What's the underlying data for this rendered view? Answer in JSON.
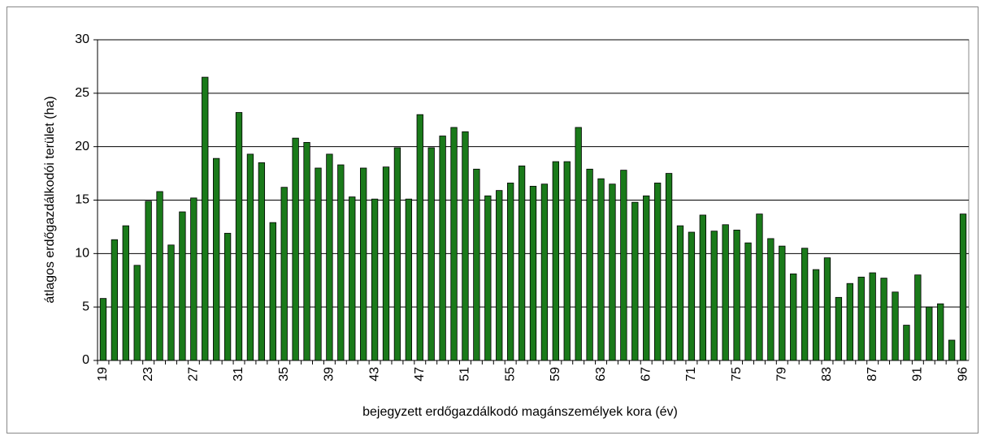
{
  "chart_data": {
    "type": "bar",
    "x_label": "bejegyzett erdőgazdálkodó magánszemélyek kora (év)",
    "y_label": "átlagos erdőgazdálkodói terület (ha)",
    "categories": [
      "19",
      null,
      null,
      null,
      "23",
      null,
      null,
      null,
      "27",
      null,
      null,
      null,
      "31",
      null,
      null,
      null,
      "35",
      null,
      null,
      null,
      "39",
      null,
      null,
      null,
      "43",
      null,
      null,
      null,
      "47",
      null,
      null,
      null,
      "51",
      null,
      null,
      null,
      "55",
      null,
      null,
      null,
      "59",
      null,
      null,
      null,
      "63",
      null,
      null,
      null,
      "67",
      null,
      null,
      null,
      "71",
      null,
      null,
      null,
      "75",
      null,
      null,
      null,
      "79",
      null,
      null,
      null,
      "83",
      null,
      null,
      null,
      "87",
      null,
      null,
      null,
      "91",
      null,
      null,
      null,
      "96"
    ],
    "values": [
      5.8,
      11.3,
      12.6,
      8.9,
      14.9,
      15.8,
      10.8,
      13.9,
      15.2,
      26.5,
      18.9,
      11.9,
      23.2,
      19.3,
      18.5,
      12.9,
      16.2,
      20.8,
      20.4,
      18.0,
      19.3,
      18.3,
      15.3,
      18.0,
      15.1,
      18.1,
      19.9,
      15.1,
      23.0,
      19.9,
      21.0,
      21.8,
      21.4,
      17.9,
      15.4,
      15.9,
      16.6,
      18.2,
      16.3,
      16.5,
      18.6,
      18.6,
      21.8,
      17.9,
      17.0,
      16.5,
      17.8,
      14.8,
      15.4,
      16.6,
      17.5,
      12.6,
      12.0,
      13.6,
      12.1,
      12.7,
      12.2,
      11.0,
      13.7,
      11.4,
      10.7,
      8.1,
      10.5,
      8.5,
      9.6,
      5.9,
      7.2,
      7.8,
      8.2,
      7.7,
      6.4,
      3.3,
      8.0,
      5.0,
      5.3,
      1.9,
      13.7
    ],
    "color": "#1a7a1a",
    "ylim": [
      0,
      30
    ],
    "yticks": [
      0,
      5,
      10,
      15,
      20,
      25,
      30
    ],
    "grid": true
  }
}
